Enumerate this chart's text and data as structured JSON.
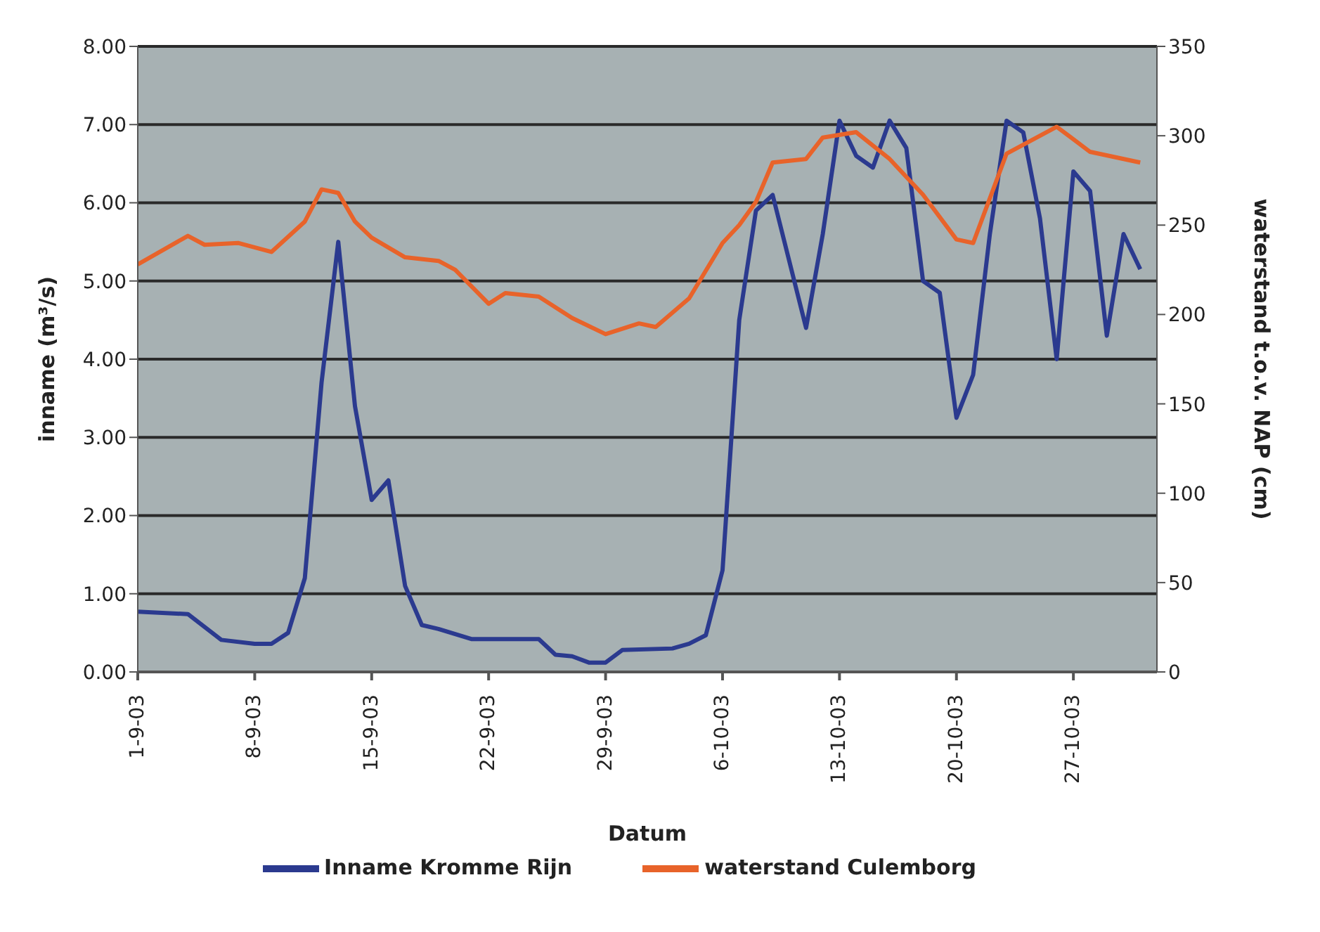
{
  "chart_data": {
    "type": "line",
    "xlabel": "Datum",
    "ylabel": "inname (m³/s)",
    "y2label": "waterstand t.o.v. NAP (cm)",
    "xlim": [
      "--09-01",
      "--11-01"
    ],
    "xticks": [
      {
        "value": "--09-01",
        "label": "1-9-03"
      },
      {
        "value": "--09-08",
        "label": "8-9-03"
      },
      {
        "value": "--09-15",
        "label": "15-9-03"
      },
      {
        "value": "--09-22",
        "label": "22-9-03"
      },
      {
        "value": "--09-29",
        "label": "29-9-03"
      },
      {
        "value": "--10-06",
        "label": "6-10-03"
      },
      {
        "value": "--10-13",
        "label": "13-10-03"
      },
      {
        "value": "--10-20",
        "label": "20-10-03"
      },
      {
        "value": "--10-27",
        "label": "27-10-03"
      }
    ],
    "ylim": [
      0,
      8
    ],
    "yticks": [
      {
        "value": 0,
        "label": "0.00"
      },
      {
        "value": 1,
        "label": "1.00"
      },
      {
        "value": 2,
        "label": "2.00"
      },
      {
        "value": 3,
        "label": "3.00"
      },
      {
        "value": 4,
        "label": "4.00"
      },
      {
        "value": 5,
        "label": "5.00"
      },
      {
        "value": 6,
        "label": "6.00"
      },
      {
        "value": 7,
        "label": "7.00"
      },
      {
        "value": 8,
        "label": "8.00"
      }
    ],
    "y2lim": [
      0,
      350
    ],
    "y2ticks": [
      0,
      50,
      100,
      150,
      200,
      250,
      300,
      350
    ],
    "grid": "y",
    "legend": "bottom",
    "marker": "none",
    "line_style": "solid",
    "series": [
      {
        "name": "Inname Kromme Rijn",
        "color": "#2b3a8f",
        "x": [
          "--09-01",
          "--09-04",
          "--09-06",
          "--09-08",
          "--09-09",
          "--09-10",
          "--09-11",
          "--09-12",
          "--09-13",
          "--09-14",
          "--09-15",
          "--09-16",
          "--09-17",
          "--09-18",
          "--09-19",
          "--09-21",
          "--09-25",
          "--09-26",
          "--09-27",
          "--09-28",
          "--09-29",
          "--09-30",
          "--10-03",
          "--10-04",
          "--10-05",
          "--10-06",
          "--10-07",
          "--10-08",
          "--10-09",
          "--10-11",
          "--10-12",
          "--10-13",
          "--10-14",
          "--10-15",
          "--10-16",
          "--10-17",
          "--10-18",
          "--10-19",
          "--10-20",
          "--10-21",
          "--10-22",
          "--10-23",
          "--10-24",
          "--10-25",
          "--10-26",
          "--10-27",
          "--10-28",
          "--10-29",
          "--10-30",
          "--10-31"
        ],
        "values": [
          0.77,
          0.74,
          0.41,
          0.36,
          0.36,
          0.5,
          1.2,
          3.7,
          5.5,
          3.4,
          2.2,
          2.45,
          1.1,
          0.6,
          0.55,
          0.42,
          0.42,
          0.22,
          0.2,
          0.12,
          0.12,
          0.28,
          0.3,
          0.36,
          0.47,
          1.3,
          4.5,
          5.9,
          6.1,
          4.4,
          5.6,
          7.05,
          6.6,
          6.45,
          7.05,
          6.7,
          5.0,
          4.85,
          3.25,
          3.8,
          5.6,
          7.05,
          6.9,
          5.8,
          4.0,
          6.4,
          6.15,
          4.3,
          5.6,
          5.15
        ]
      },
      {
        "name": "waterstand Culemborg",
        "color": "#e8632a",
        "axis": "y2",
        "x": [
          "--09-01",
          "--09-04",
          "--09-05",
          "--09-07",
          "--09-09",
          "--09-11",
          "--09-12",
          "--09-13",
          "--09-14",
          "--09-15",
          "--09-17",
          "--09-19",
          "--09-20",
          "--09-22",
          "--09-23",
          "--09-25",
          "--09-27",
          "--09-29",
          "--10-01",
          "--10-02",
          "--10-04",
          "--10-06",
          "--10-07",
          "--10-08",
          "--10-09",
          "--10-11",
          "--10-12",
          "--10-14",
          "--10-16",
          "--10-18",
          "--10-20",
          "--10-21",
          "--10-23",
          "--10-26",
          "--10-28",
          "--10-31"
        ],
        "values": [
          228,
          244,
          239,
          240,
          235,
          252,
          270,
          268,
          252,
          243,
          232,
          230,
          225,
          206,
          212,
          210,
          198,
          189,
          195,
          193,
          209,
          240,
          250,
          263,
          285,
          287,
          299,
          302,
          287,
          267,
          242,
          240,
          290,
          305,
          291,
          285
        ]
      }
    ]
  }
}
